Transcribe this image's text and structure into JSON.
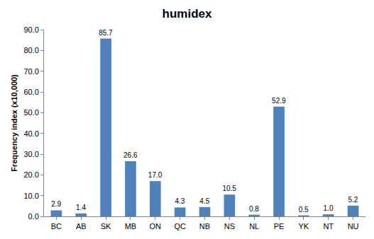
{
  "chart_data": {
    "type": "bar",
    "title": "humidex",
    "y_label": "Frequency index (x10,000)",
    "categories": [
      "BC",
      "AB",
      "SK",
      "MB",
      "ON",
      "QC",
      "NB",
      "NS",
      "NL",
      "PE",
      "YK",
      "NT",
      "NU"
    ],
    "values": [
      2.9,
      1.4,
      85.7,
      26.6,
      17.0,
      4.3,
      4.5,
      10.5,
      0.8,
      52.9,
      0.5,
      1.0,
      5.2
    ],
    "value_labels": [
      "2.9",
      "1.4",
      "85.7",
      "26.6",
      "17.0",
      "4.3",
      "4.5",
      "10.5",
      "0.8",
      "52.9",
      "0.5",
      "1.0",
      "5.2"
    ],
    "color": "#4f81bd",
    "ylim": [
      0,
      90
    ],
    "yticks": [
      {
        "value": 0,
        "label": "0.0"
      },
      {
        "value": 10,
        "label": "10.0"
      },
      {
        "value": 20,
        "label": "20.0"
      },
      {
        "value": 30,
        "label": "30.0"
      },
      {
        "value": 40,
        "label": "40.0"
      },
      {
        "value": 50,
        "label": "50.0"
      },
      {
        "value": 60,
        "label": "60.0"
      },
      {
        "value": 70,
        "label": "70.0"
      },
      {
        "value": 80,
        "label": "80.0"
      },
      {
        "value": 90,
        "label": "90.0"
      }
    ],
    "grid": false,
    "data_labels": true
  }
}
